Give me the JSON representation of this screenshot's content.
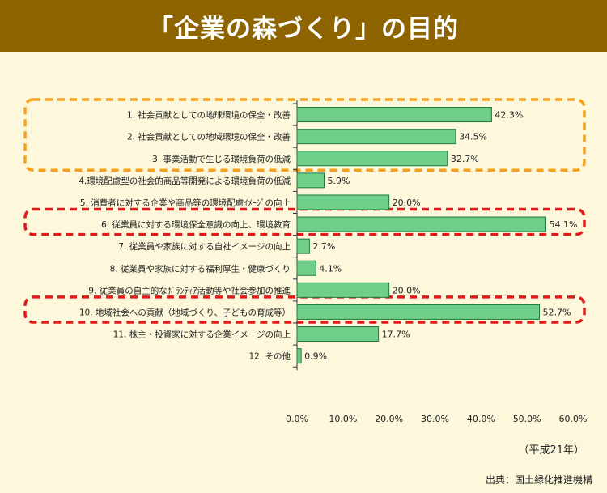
{
  "title": "「企業の森づくり」の目的",
  "era_note": "（平成21年）",
  "source": "出典：国土緑化推進機構",
  "colors": {
    "header": "#8e6400",
    "bar": "#6fcf8a",
    "bar_stroke": "#1f7a3a",
    "highlight_orange": "#f5a21b",
    "highlight_red": "#e01b1b"
  },
  "chart_data": {
    "type": "bar",
    "orientation": "horizontal",
    "categories": [
      "1. 社会貢献としての地球環境の保全・改善",
      "2. 社会貢献としての地域環境の保全・改善",
      "3. 事業活動で生じる環境負荷の低減",
      "4.環境配慮型の社会的商品等開発による環境負荷の低減",
      "5. 消費者に対する企業や商品等の環境配慮ｲﾒｰｼﾞの向上",
      "6. 従業員に対する環境保全意識の向上、環境教育",
      "7. 従業員や家族に対する自社イメージの向上",
      "8. 従業員や家族に対する福利厚生・健康づくり",
      "9. 従業員の自主的なﾎﾞﾗﾝﾃｨｱ活動等や社会参加の推進",
      "10. 地域社会への貢献（地域づくり、子どもの育成等）",
      "11. 株主・投資家に対する企業イメージの向上",
      "12. その他"
    ],
    "values": [
      42.3,
      34.5,
      32.7,
      5.9,
      20.0,
      54.1,
      2.7,
      4.1,
      20.0,
      52.7,
      17.7,
      0.9
    ],
    "value_labels": [
      "42.3%",
      "34.5%",
      "32.7%",
      "5.9%",
      "20.0%",
      "54.1%",
      "2.7%",
      "4.1%",
      "20.0%",
      "52.7%",
      "17.7%",
      "0.9%"
    ],
    "xlim": [
      0,
      60
    ],
    "xticks": [
      "0.0%",
      "10.0%",
      "20.0%",
      "30.0%",
      "40.0%",
      "50.0%",
      "60.0%"
    ],
    "highlights": [
      {
        "style": "orange-dashed",
        "items": [
          0,
          1,
          2
        ]
      },
      {
        "style": "red-dashed",
        "items": [
          5
        ]
      },
      {
        "style": "red-dashed",
        "items": [
          9
        ]
      }
    ]
  }
}
